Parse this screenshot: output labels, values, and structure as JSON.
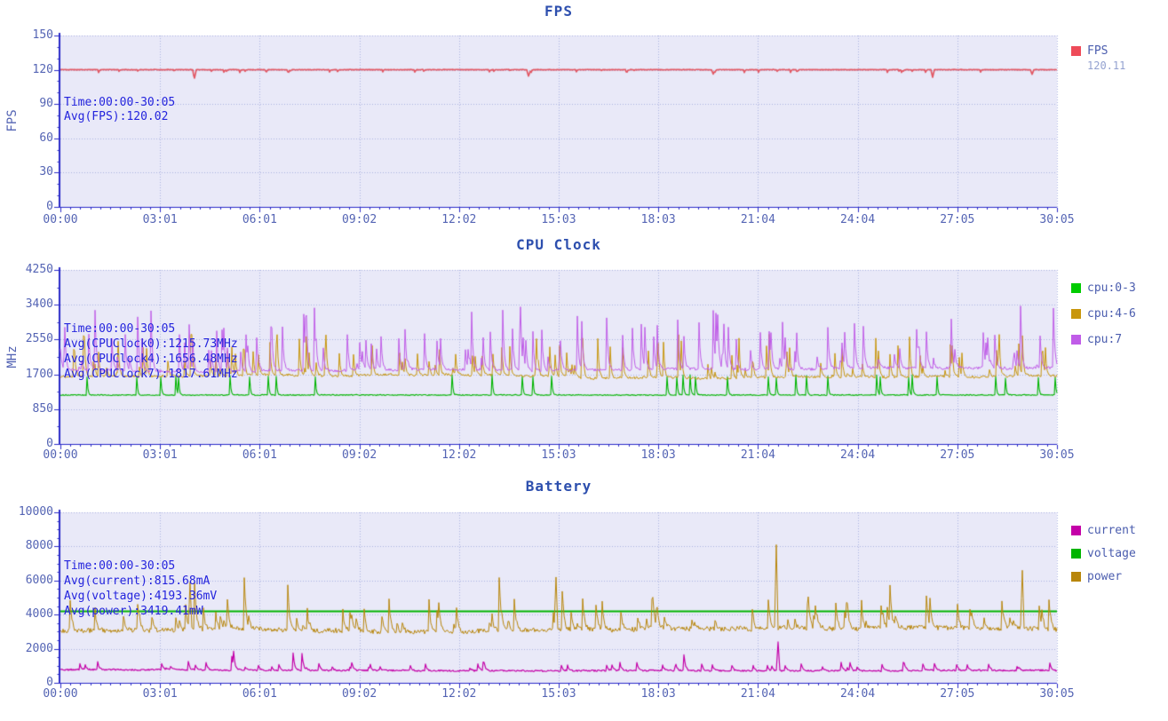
{
  "page": {
    "background": "#ffffff",
    "accent_axis_color": "#2a2ac8",
    "plot_bg_color": "#e9e9f8",
    "grid_color": "#aab2e0",
    "text_color": "#5464b4",
    "annotation_color": "#2424dd"
  },
  "chart_data": [
    {
      "id": "fps",
      "type": "line",
      "title": "FPS",
      "ylabel": "FPS",
      "ylim": [
        0,
        150
      ],
      "yticks": [
        0,
        30,
        60,
        90,
        120,
        150
      ],
      "y_minor_step": 10,
      "xticks": [
        "00:00",
        "03:01",
        "06:01",
        "09:02",
        "12:02",
        "15:03",
        "18:03",
        "21:04",
        "24:04",
        "27:05",
        "30:05"
      ],
      "x_range": "00:00-30:05",
      "grid": true,
      "legend_position": "right",
      "annotation": {
        "lines": [
          "Time:00:00-30:05",
          "Avg(FPS):120.02"
        ]
      },
      "legend": [
        {
          "label": "FPS",
          "color": "#ee4b59",
          "value": "120.11"
        }
      ],
      "series": [
        {
          "name": "FPS",
          "color": "#e25864",
          "width": 1.7,
          "seed": 11,
          "gen": {
            "baseline": 120.1,
            "noise": 0.22,
            "spike_dir": -1,
            "spike_prob": 0.04,
            "spike_range": [
              0.8,
              2.6
            ],
            "decay": 0.3,
            "clamp": [
              110,
              120.5
            ],
            "events": [
              {
                "t": 0.135,
                "v": 112.8
              },
              {
                "t": 0.47,
                "v": 114.5
              },
              {
                "t": 0.655,
                "v": 116.2
              },
              {
                "t": 0.875,
                "v": 113.5
              },
              {
                "t": 0.975,
                "v": 116.0
              }
            ]
          }
        }
      ],
      "avg": 120.02
    },
    {
      "id": "cpu_clock",
      "type": "line",
      "title": "CPU Clock",
      "ylabel": "MHz",
      "ylim": [
        0,
        4250
      ],
      "yticks": [
        0,
        850,
        1700,
        2550,
        3400,
        4250
      ],
      "y_minor_step": 425,
      "xticks": [
        "00:00",
        "03:01",
        "06:01",
        "09:02",
        "12:02",
        "15:03",
        "18:03",
        "21:04",
        "24:04",
        "27:05",
        "30:05"
      ],
      "x_range": "00:00-30:05",
      "grid": true,
      "legend_position": "right",
      "annotation": {
        "lines": [
          "Time:00:00-30:05",
          "Avg(CPUClock0):1215.73MHz",
          "Avg(CPUClock4):1656.48MHz",
          "Avg(CPUClock7):1817.61MHz"
        ]
      },
      "legend": [
        {
          "label": "cpu:0-3",
          "color": "#00cc00"
        },
        {
          "label": "cpu:4-6",
          "color": "#c8960c"
        },
        {
          "label": "cpu:7",
          "color": "#c05ce8"
        }
      ],
      "series": [
        {
          "name": "cpu:0-3",
          "color": "#00b400",
          "width": 1.1,
          "seed": 23,
          "gen": {
            "baseline": 1195,
            "noise": 12,
            "spike_dir": 1,
            "spike_prob": 0.02,
            "spike_range": [
              420,
              500
            ],
            "decay": 0.35,
            "clamp": [
              1150,
              1705
            ]
          }
        },
        {
          "name": "cpu:4-6",
          "color": "#c8960c",
          "width": 1.0,
          "seed": 37,
          "gen": {
            "baseline": 1640,
            "noise": 30,
            "wander_step": 8,
            "wander_max": 60,
            "spike_dir": 1,
            "spike_prob": 0.1,
            "spike_range": [
              80,
              1050
            ],
            "decay": 0.45,
            "clamp": [
              1560,
              2820
            ]
          }
        },
        {
          "name": "cpu:7",
          "color": "#c05ce8",
          "width": 1.0,
          "seed": 51,
          "gen": {
            "baseline": 1800,
            "noise": 35,
            "wander_step": 8,
            "wander_max": 70,
            "spike_dir": 1,
            "spike_prob": 0.1,
            "spike_range": [
              100,
              1200
            ],
            "big_spike_prob": 0.012,
            "big_spike_range": [
              1300,
              1560
            ],
            "decay": 0.5,
            "clamp": [
              1700,
              3370
            ]
          }
        }
      ],
      "avg": {
        "CPUClock0": 1215.73,
        "CPUClock4": 1656.48,
        "CPUClock7": 1817.61
      }
    },
    {
      "id": "battery",
      "type": "line",
      "title": "Battery",
      "ylabel": "",
      "ylim": [
        0,
        10000
      ],
      "yticks": [
        0,
        2000,
        4000,
        6000,
        8000,
        10000
      ],
      "y_minor_step": 500,
      "xticks": [
        "00:00",
        "03:01",
        "06:01",
        "09:02",
        "12:02",
        "15:03",
        "18:03",
        "21:04",
        "24:04",
        "27:05",
        "30:05"
      ],
      "x_range": "00:00-30:05",
      "grid": true,
      "legend_position": "right",
      "annotation": {
        "lines": [
          "Time:00:00-30:05",
          "Avg(current):815.68mA",
          "Avg(voltage):4193.36mV",
          "Avg(power):3419.41mW"
        ]
      },
      "legend": [
        {
          "label": "current",
          "color": "#c400a8"
        },
        {
          "label": "voltage",
          "color": "#00b400"
        },
        {
          "label": "power",
          "color": "#b8860b"
        }
      ],
      "series": [
        {
          "name": "current",
          "color": "#c400a8",
          "width": 1.2,
          "seed": 67,
          "gen": {
            "baseline": 770,
            "noise": 45,
            "wander_step": 6,
            "wander_max": 70,
            "spike_dir": 1,
            "spike_prob": 0.05,
            "spike_range": [
              120,
              500
            ],
            "big_spike_prob": 0.004,
            "big_spike_range": [
              700,
              1100
            ],
            "decay": 0.55,
            "clamp": [
              600,
              2450
            ],
            "events": [
              {
                "t": 0.72,
                "v": 2400
              }
            ]
          }
        },
        {
          "name": "voltage",
          "color": "#00b400",
          "width": 2.0,
          "seed": 71,
          "gen": {
            "baseline": 4193,
            "noise": 3,
            "clamp": [
              4180,
              4205
            ]
          }
        },
        {
          "name": "power",
          "color": "#b8860b",
          "width": 1.0,
          "seed": 83,
          "gen": {
            "baseline": 3050,
            "noise": 140,
            "wander_step": 20,
            "wander_max": 320,
            "spike_dir": 1,
            "spike_prob": 0.08,
            "spike_range": [
              300,
              1900
            ],
            "big_spike_prob": 0.006,
            "big_spike_range": [
              2300,
              3200
            ],
            "decay": 0.6,
            "clamp": [
              2450,
              8150
            ],
            "events": [
              {
                "t": 0.13,
                "v": 5900
              },
              {
                "t": 0.497,
                "v": 6200
              },
              {
                "t": 0.718,
                "v": 8100
              },
              {
                "t": 0.965,
                "v": 6600
              }
            ]
          }
        }
      ],
      "avg": {
        "current_mA": 815.68,
        "voltage_mV": 4193.36,
        "power_mW": 3419.41
      }
    }
  ]
}
